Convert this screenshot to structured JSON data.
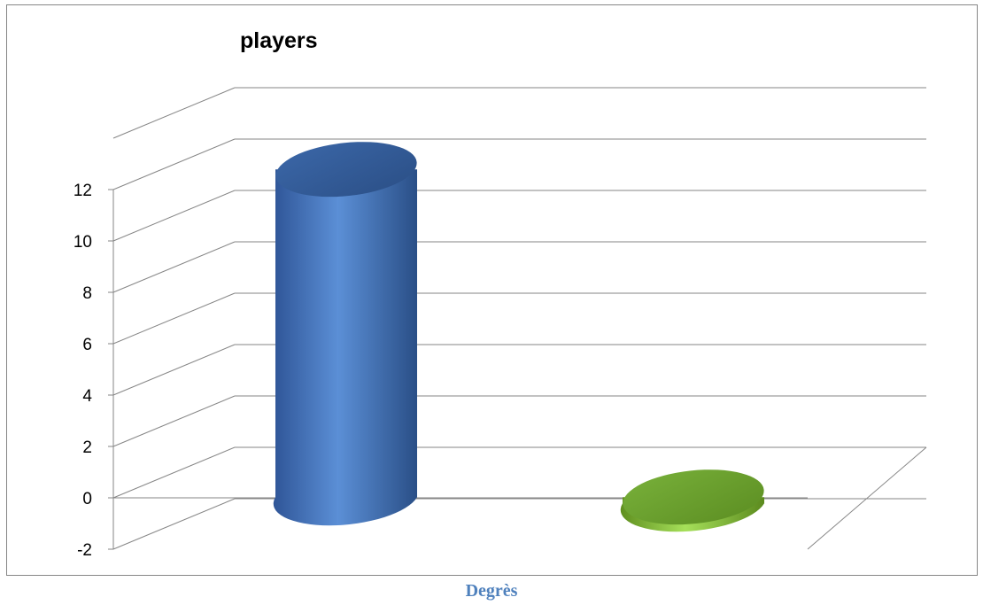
{
  "caption": "Degrès",
  "chart_data": {
    "type": "bar",
    "title": "players",
    "xlabel": "",
    "ylabel": "",
    "ylim": [
      -2,
      12
    ],
    "yticks": [
      "12",
      "10",
      "8",
      "6",
      "4",
      "2",
      "0",
      "-2"
    ],
    "grid": true,
    "style": "3d-cylinder",
    "categories": [
      "",
      ""
    ],
    "values": [
      12,
      -1
    ],
    "colors": [
      "#4f81bd",
      "#9bbb59"
    ]
  }
}
